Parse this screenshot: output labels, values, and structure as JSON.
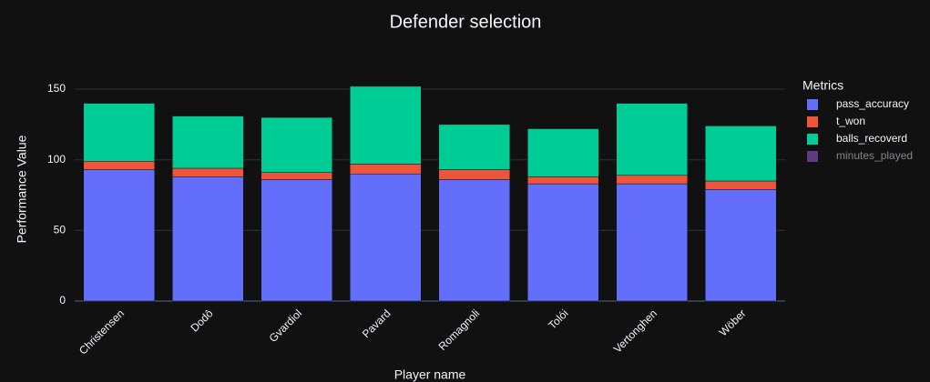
{
  "chart_data": {
    "type": "stacked_bar",
    "title": "Defender selection",
    "x_label": "Player name",
    "y_label": "Performance Value",
    "legend_title": "Metrics",
    "categories": [
      "Christensen",
      "Dodô",
      "Gvardiol",
      "Pavard",
      "Romagnoli",
      "Tolói",
      "Vertonghen",
      "Wöber"
    ],
    "series": [
      {
        "name": "pass_accuracy",
        "color": "#636efa",
        "values": [
          93,
          88,
          86,
          90,
          86,
          83,
          83,
          79
        ]
      },
      {
        "name": "t_won",
        "color": "#ef553b",
        "values": [
          6,
          6,
          5,
          7,
          7,
          5,
          6,
          6
        ]
      },
      {
        "name": "balls_recoverd",
        "color": "#00cc96",
        "values": [
          41,
          37,
          39,
          55,
          32,
          34,
          51,
          39
        ]
      },
      {
        "name": "minutes_played",
        "color": "#ab63fa",
        "hidden": true
      }
    ],
    "ylim": [
      0,
      160
    ],
    "yticks": [
      0,
      50,
      100,
      150
    ],
    "grid": true,
    "legend": "right"
  }
}
